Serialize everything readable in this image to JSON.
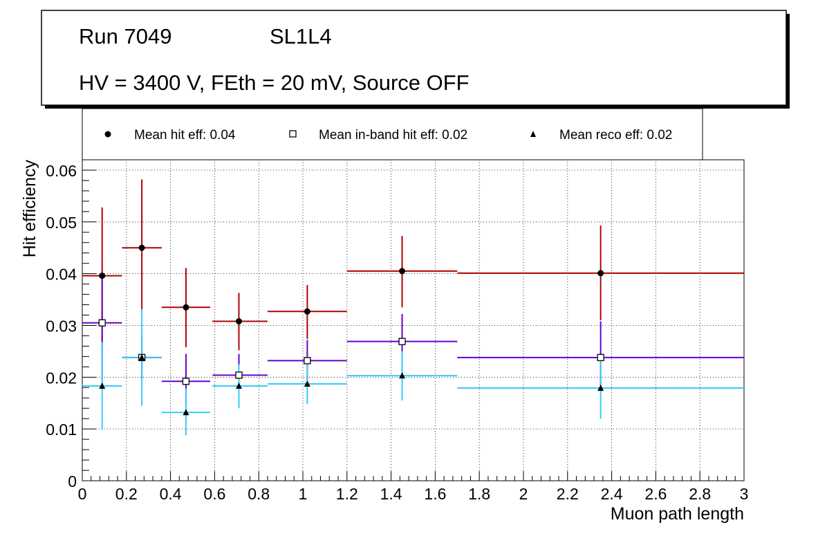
{
  "title_box": {
    "run_label": "Run 7049",
    "layer_label": "SL1L4",
    "conditions": "HV = 3400 V, FEth = 20 mV, Source OFF"
  },
  "legend": [
    {
      "marker": "circle-filled",
      "label": "Mean hit  eff: 0.04"
    },
    {
      "marker": "square-open",
      "label": "Mean in-band hit eff: 0.02"
    },
    {
      "marker": "triangle-filled",
      "label": "Mean reco eff: 0.02"
    }
  ],
  "chart_data": {
    "type": "scatter",
    "xlabel": "Muon path length",
    "ylabel": "Hit efficiency",
    "xlim": [
      0,
      3
    ],
    "ylim": [
      0,
      0.062
    ],
    "grid": true,
    "legend_position": "top",
    "xticks": [
      0,
      0.2,
      0.4,
      0.6,
      0.8,
      1,
      1.2,
      1.4,
      1.6,
      1.8,
      2,
      2.2,
      2.4,
      2.6,
      2.8,
      3
    ],
    "xtick_labels": [
      "0",
      "0.2",
      "0.4",
      "0.6",
      "0.8",
      "1",
      "1.2",
      "1.4",
      "1.6",
      "1.8",
      "2",
      "2.2",
      "2.4",
      "2.6",
      "2.8",
      "3"
    ],
    "yticks": [
      0,
      0.01,
      0.02,
      0.03,
      0.04,
      0.05,
      0.06
    ],
    "ytick_labels": [
      "0",
      "0.01",
      "0.02",
      "0.03",
      "0.04",
      "0.05",
      "0.06"
    ],
    "series": [
      {
        "name": "Mean hit  eff: 0.04",
        "marker": "circle-filled",
        "color": "#b30000",
        "points": [
          {
            "x": 0.09,
            "xlo": 0,
            "xhi": 0.18,
            "y": 0.0396,
            "ylo": 0.0265,
            "yhi": 0.0528
          },
          {
            "x": 0.27,
            "xlo": 0.18,
            "xhi": 0.36,
            "y": 0.045,
            "ylo": 0.033,
            "yhi": 0.0582
          },
          {
            "x": 0.47,
            "xlo": 0.36,
            "xhi": 0.58,
            "y": 0.0335,
            "ylo": 0.0258,
            "yhi": 0.0411
          },
          {
            "x": 0.71,
            "xlo": 0.59,
            "xhi": 0.84,
            "y": 0.0308,
            "ylo": 0.0252,
            "yhi": 0.0363
          },
          {
            "x": 1.02,
            "xlo": 0.84,
            "xhi": 1.2,
            "y": 0.0327,
            "ylo": 0.0274,
            "yhi": 0.0378
          },
          {
            "x": 1.45,
            "xlo": 1.2,
            "xhi": 1.7,
            "y": 0.0405,
            "ylo": 0.0335,
            "yhi": 0.0473
          },
          {
            "x": 2.35,
            "xlo": 1.7,
            "xhi": 3.0,
            "y": 0.0401,
            "ylo": 0.031,
            "yhi": 0.0493
          }
        ]
      },
      {
        "name": "Mean in-band hit eff: 0.02",
        "marker": "square-open",
        "color": "#6600cc",
        "points": [
          {
            "x": 0.09,
            "xlo": 0,
            "xhi": 0.18,
            "y": 0.0305,
            "ylo": 0.0195,
            "yhi": 0.0405
          },
          {
            "x": 0.27,
            "xlo": 0.18,
            "xhi": 0.36,
            "y": 0.0238,
            "ylo": 0.0195,
            "yhi": 0.028
          },
          {
            "x": 0.47,
            "xlo": 0.36,
            "xhi": 0.58,
            "y": 0.0192,
            "ylo": 0.0145,
            "yhi": 0.0245
          },
          {
            "x": 0.71,
            "xlo": 0.59,
            "xhi": 0.84,
            "y": 0.0204,
            "ylo": 0.0172,
            "yhi": 0.0245
          },
          {
            "x": 1.02,
            "xlo": 0.84,
            "xhi": 1.2,
            "y": 0.0232,
            "ylo": 0.0195,
            "yhi": 0.0272
          },
          {
            "x": 1.45,
            "xlo": 1.2,
            "xhi": 1.7,
            "y": 0.0269,
            "ylo": 0.0218,
            "yhi": 0.0322
          },
          {
            "x": 2.35,
            "xlo": 1.7,
            "xhi": 3.0,
            "y": 0.0238,
            "ylo": 0.0172,
            "yhi": 0.0308
          }
        ]
      },
      {
        "name": "Mean reco eff: 0.02",
        "marker": "triangle-filled",
        "color": "#33ccff",
        "points": [
          {
            "x": 0.09,
            "xlo": 0,
            "xhi": 0.18,
            "y": 0.0183,
            "ylo": 0.0098,
            "yhi": 0.0268
          },
          {
            "x": 0.27,
            "xlo": 0.18,
            "xhi": 0.36,
            "y": 0.0238,
            "ylo": 0.0145,
            "yhi": 0.0332
          },
          {
            "x": 0.47,
            "xlo": 0.36,
            "xhi": 0.58,
            "y": 0.0132,
            "ylo": 0.0088,
            "yhi": 0.0178
          },
          {
            "x": 0.71,
            "xlo": 0.59,
            "xhi": 0.84,
            "y": 0.0183,
            "ylo": 0.014,
            "yhi": 0.0225
          },
          {
            "x": 1.02,
            "xlo": 0.84,
            "xhi": 1.2,
            "y": 0.0187,
            "ylo": 0.0148,
            "yhi": 0.0225
          },
          {
            "x": 1.45,
            "xlo": 1.2,
            "xhi": 1.7,
            "y": 0.0203,
            "ylo": 0.0155,
            "yhi": 0.025
          },
          {
            "x": 2.35,
            "xlo": 1.7,
            "xhi": 3.0,
            "y": 0.0179,
            "ylo": 0.012,
            "yhi": 0.0238
          }
        ]
      }
    ]
  }
}
